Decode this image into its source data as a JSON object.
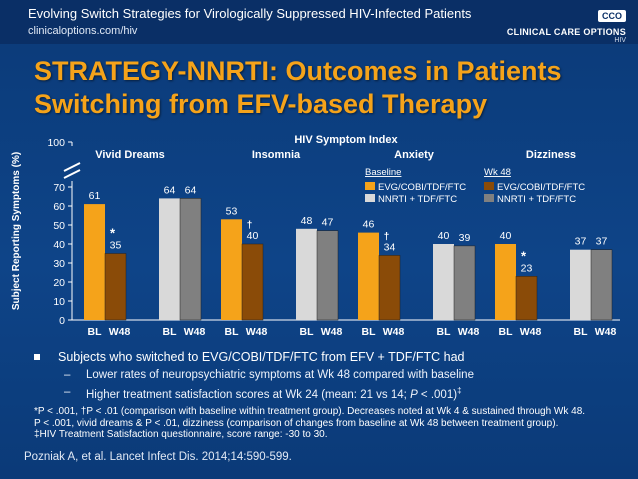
{
  "header": {
    "title": "Evolving Switch Strategies for Virologically Suppressed HIV-Infected Patients",
    "url": "clinicaloptions.com/hiv",
    "logo_mark": "CCO",
    "logo_name": "CLINICAL CARE OPTIONS",
    "logo_sub": "HIV"
  },
  "slide_title": {
    "line1": "STRATEGY-NNRTI: Outcomes in Patients",
    "line2": "Switching from EFV-based Therapy"
  },
  "colors": {
    "evg_baseline": "#f5a31a",
    "evg_wk48": "#8a4b08",
    "nnrti_baseline": "#d9d9d9",
    "nnrti_wk48": "#808080"
  },
  "chart_data": {
    "type": "bar",
    "title": "HIV Symptom Index",
    "ylabel": "Subject Reporting Symptoms (%)",
    "ylim": [
      0,
      100
    ],
    "yticks": [
      "0",
      "10",
      "20",
      "30",
      "40",
      "50",
      "60",
      "70",
      "100"
    ],
    "axis_break_between": [
      70,
      100
    ],
    "legend": {
      "placement": "top-right",
      "baseline_heading": "Baseline",
      "wk48_heading": "Wk 48",
      "baseline_evg": "EVG/COBI/TDF/FTC",
      "baseline_nnrti": "NNRTI + TDF/FTC",
      "wk48_evg": "EVG/COBI/TDF/FTC",
      "wk48_nnrti": "NNRTI + TDF/FTC"
    },
    "bar_labels": [
      "BL",
      "W48"
    ],
    "groups": [
      {
        "name": "Vivid Dreams",
        "evg": {
          "bl": 61,
          "w48": 35,
          "bl_label": "61",
          "w48_label": "35",
          "marker": "*"
        },
        "nnrti": {
          "bl": 64,
          "w48": 64,
          "bl_label": "64",
          "w48_label": "64"
        }
      },
      {
        "name": "Insomnia",
        "evg": {
          "bl": 53,
          "w48": 40,
          "bl_label": "53",
          "w48_label": "40",
          "marker": "†"
        },
        "nnrti": {
          "bl": 48,
          "w48": 47,
          "bl_label": "48",
          "w48_label": "47"
        }
      },
      {
        "name": "Anxiety",
        "evg": {
          "bl": 46,
          "w48": 34,
          "bl_label": "46",
          "w48_label": "34",
          "marker": "†"
        },
        "nnrti": {
          "bl": 40,
          "w48": 39,
          "bl_label": "40",
          "w48_label": "39"
        }
      },
      {
        "name": "Dizziness",
        "evg": {
          "bl": 40,
          "w48": 23,
          "bl_label": "40",
          "w48_label": "23",
          "marker": "*"
        },
        "nnrti": {
          "bl": 37,
          "w48": 37,
          "bl_label": "37",
          "w48_label": "37"
        }
      }
    ]
  },
  "bullets": {
    "main": "Subjects who switched to EVG/COBI/TDF/FTC from EFV + TDF/FTC had",
    "sub1": "Lower rates of neuropsychiatric symptoms at Wk 48 compared with baseline",
    "sub2_prefix": "Higher treatment satisfaction scores at Wk 24 (mean: 21 vs 14; ",
    "sub2_p": "P",
    "sub2_suffix": " < .001)",
    "sub2_sup": "‡"
  },
  "footnotes": {
    "line1": "*P < .001, †P < .01 (comparison with baseline within treatment group). Decreases noted at Wk 4 & sustained through Wk 48.",
    "line2": "P < .001, vivid dreams & P < .01, dizziness (comparison of changes from baseline at Wk 48 between treatment group).",
    "line3": "‡HIV Treatment Satisfaction questionnaire, score range: -30 to 30."
  },
  "citation": "Pozniak A, et al. Lancet Infect Dis. 2014;14:590-599."
}
